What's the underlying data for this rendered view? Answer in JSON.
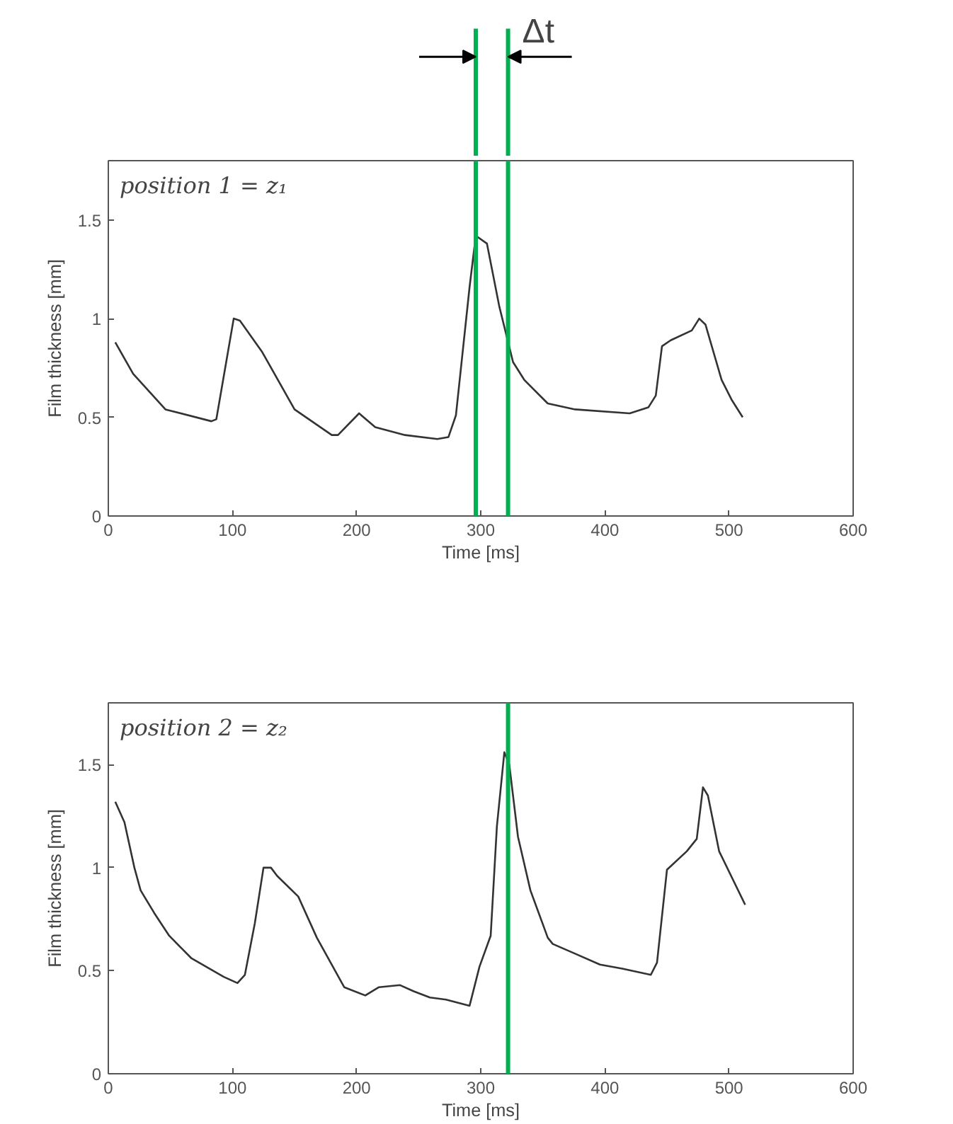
{
  "chart_data": [
    {
      "type": "line",
      "xlabel": "Time [ms]",
      "ylabel": "Film thickness [mm]",
      "xlim": [
        0,
        600
      ],
      "ylim": [
        0,
        1.8
      ],
      "xticks": [
        0,
        100,
        200,
        300,
        400,
        500,
        600
      ],
      "yticks": [
        0,
        0.5,
        1,
        1.5
      ],
      "grid": false,
      "line_style": "solid",
      "annotations": [
        "position 1 = z₁",
        "Δt"
      ],
      "ref_lines": [
        {
          "axis": "x",
          "value": 296,
          "label": null,
          "color": "#00b050"
        },
        {
          "axis": "x",
          "value": 322,
          "label": null,
          "color": "#00b050"
        }
      ],
      "series": [
        {
          "color": "#333333",
          "x": [
            5.6,
            20,
            46,
            83,
            87,
            101,
            106,
            124,
            150,
            180,
            185,
            202,
            215,
            239,
            265,
            274,
            280,
            291,
            296,
            305,
            315,
            326,
            335,
            354,
            376,
            420,
            435,
            441,
            446,
            453,
            470,
            476,
            481,
            494,
            502,
            511
          ],
          "values": [
            0.88,
            0.72,
            0.54,
            0.48,
            0.49,
            1.0,
            0.99,
            0.83,
            0.54,
            0.41,
            0.41,
            0.52,
            0.45,
            0.41,
            0.39,
            0.4,
            0.51,
            1.16,
            1.42,
            1.38,
            1.06,
            0.78,
            0.69,
            0.57,
            0.54,
            0.52,
            0.55,
            0.61,
            0.86,
            0.89,
            0.94,
            1.0,
            0.97,
            0.69,
            0.59,
            0.5
          ]
        }
      ]
    },
    {
      "type": "line",
      "xlabel": "Time [ms]",
      "ylabel": "Film thickness [mm]",
      "xlim": [
        0,
        600
      ],
      "ylim": [
        0,
        1.8
      ],
      "xticks": [
        0,
        100,
        200,
        300,
        400,
        500,
        600
      ],
      "yticks": [
        0,
        0.5,
        1,
        1.5
      ],
      "grid": false,
      "line_style": "solid",
      "annotations": [
        "position 2 = z₂"
      ],
      "ref_lines": [
        {
          "axis": "x",
          "value": 322,
          "label": null,
          "color": "#00b050"
        }
      ],
      "series": [
        {
          "color": "#333333",
          "x": [
            5.6,
            13,
            21,
            26,
            37,
            49,
            67,
            93,
            104,
            110,
            118,
            125,
            131,
            136,
            153,
            168,
            190,
            207,
            218,
            235,
            246,
            259,
            272,
            291,
            299,
            308,
            313,
            319,
            323,
            330,
            340,
            354,
            358,
            377,
            396,
            414,
            437,
            442,
            450,
            466,
            474,
            479,
            483,
            492,
            513
          ],
          "values": [
            1.32,
            1.22,
            1.0,
            0.89,
            0.78,
            0.67,
            0.56,
            0.47,
            0.44,
            0.48,
            0.73,
            1.0,
            1.0,
            0.96,
            0.86,
            0.66,
            0.42,
            0.38,
            0.42,
            0.43,
            0.4,
            0.37,
            0.36,
            0.33,
            0.52,
            0.67,
            1.2,
            1.56,
            1.5,
            1.15,
            0.89,
            0.66,
            0.63,
            0.58,
            0.53,
            0.51,
            0.48,
            0.54,
            0.99,
            1.08,
            1.14,
            1.39,
            1.35,
            1.08,
            0.82
          ]
        }
      ]
    }
  ]
}
